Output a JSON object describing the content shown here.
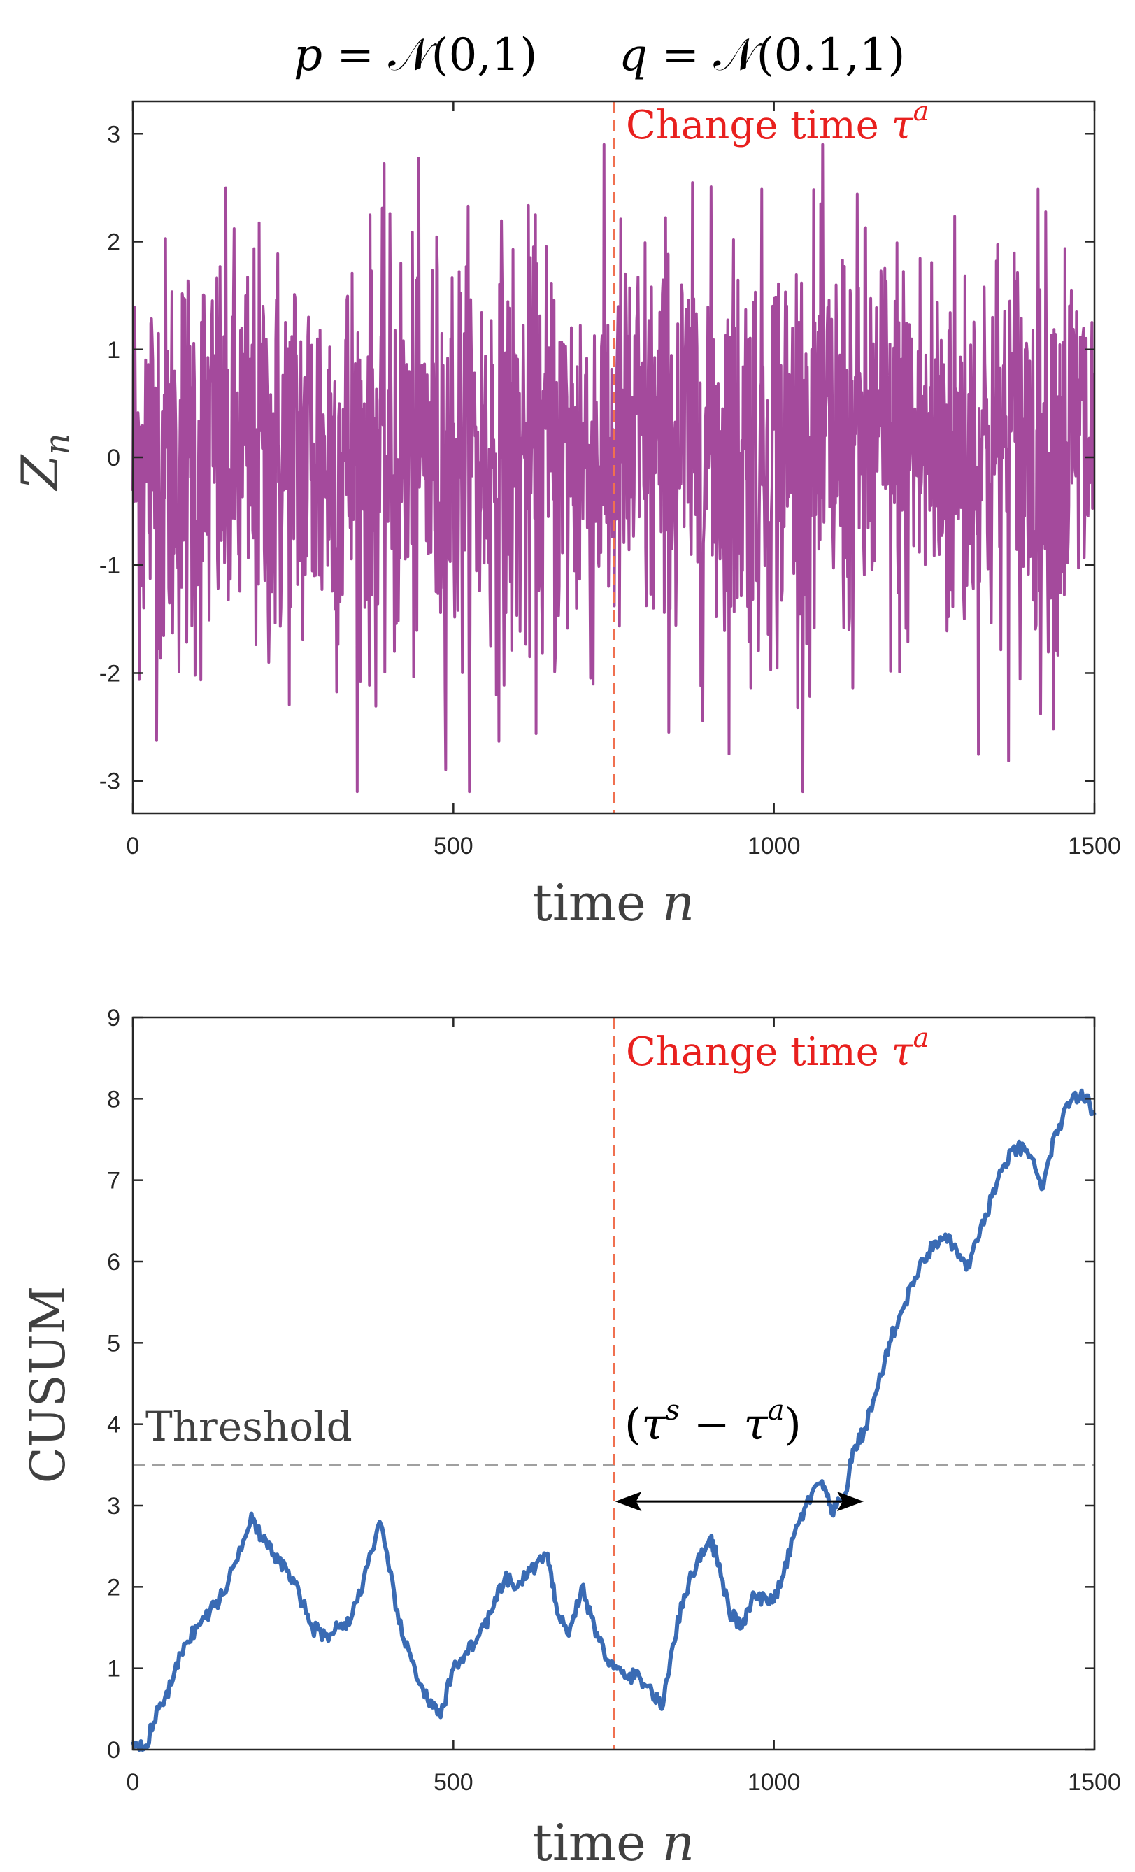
{
  "title": {
    "p_var": "p",
    "p_eq": " = ",
    "p_dist": "𝒩",
    "p_args": "(0,1)",
    "q_var": "q",
    "q_eq": " = ",
    "q_dist": "𝒩",
    "q_args": "(0.1,1)"
  },
  "colors": {
    "signal": "#a44a9c",
    "cusum": "#3a6bb4",
    "change": "#f07050",
    "change_text": "#e8201e",
    "threshold": "#a0a0a0",
    "arrow": "#000000"
  },
  "chart_data": [
    {
      "type": "line",
      "name": "observations",
      "ylabel_main": "Z",
      "ylabel_sub": "n",
      "xlabel_main": "time ",
      "xlabel_var": "n",
      "xlim": [
        0,
        1500
      ],
      "ylim": [
        -3.3,
        3.3
      ],
      "xticks": [
        0,
        500,
        1000,
        1500
      ],
      "yticks": [
        -3,
        -2,
        -1,
        0,
        1,
        2,
        3
      ],
      "series_description": "Gaussian noise, mean 0 before change, mean 0.1 after change",
      "pre_change_mean": 0,
      "post_change_mean": 0.1,
      "std": 1,
      "n_samples": 1500,
      "observed_max": 2.9,
      "observed_min": -3.1,
      "change_time": 750,
      "change_label_main": "Change time ",
      "change_label_var": "τ",
      "change_label_sup": "a"
    },
    {
      "type": "line",
      "name": "cusum",
      "ylabel": "CUSUM",
      "xlabel_main": "time ",
      "xlabel_var": "n",
      "xlim": [
        0,
        1500
      ],
      "ylim": [
        0,
        9
      ],
      "xticks": [
        0,
        500,
        1000,
        1500
      ],
      "yticks": [
        0,
        1,
        2,
        3,
        4,
        5,
        6,
        7,
        8,
        9
      ],
      "x": [
        0,
        20,
        40,
        60,
        80,
        100,
        120,
        140,
        160,
        185,
        200,
        220,
        240,
        260,
        280,
        300,
        320,
        340,
        360,
        385,
        400,
        420,
        440,
        460,
        480,
        500,
        520,
        540,
        560,
        580,
        600,
        620,
        645,
        660,
        680,
        700,
        720,
        735,
        750,
        770,
        790,
        810,
        825,
        840,
        860,
        880,
        900,
        910,
        930,
        950,
        970,
        990,
        1010,
        1030,
        1050,
        1075,
        1090,
        1110,
        1125,
        1140,
        1160,
        1180,
        1200,
        1220,
        1240,
        1260,
        1280,
        1300,
        1320,
        1340,
        1360,
        1380,
        1400,
        1420,
        1440,
        1460,
        1480,
        1500
      ],
      "y": [
        0.1,
        0.05,
        0.5,
        0.8,
        1.3,
        1.5,
        1.7,
        1.9,
        2.3,
        2.9,
        2.6,
        2.4,
        2.2,
        1.9,
        1.5,
        1.4,
        1.5,
        1.6,
        2.1,
        2.8,
        2.2,
        1.4,
        1.0,
        0.6,
        0.4,
        1.0,
        1.2,
        1.4,
        1.7,
        2.1,
        2.0,
        2.2,
        2.4,
        1.8,
        1.4,
        2.0,
        1.5,
        1.2,
        1.0,
        0.9,
        0.9,
        0.7,
        0.5,
        1.2,
        1.9,
        2.3,
        2.6,
        2.4,
        1.7,
        1.5,
        1.9,
        1.8,
        2.0,
        2.6,
        3.0,
        3.3,
        2.9,
        3.1,
        3.7,
        3.9,
        4.4,
        5.0,
        5.4,
        5.8,
        6.1,
        6.3,
        6.2,
        5.9,
        6.3,
        6.8,
        7.2,
        7.4,
        7.3,
        6.9,
        7.6,
        7.9,
        8.1,
        7.8
      ],
      "threshold": 3.5,
      "threshold_label": "Threshold",
      "change_time": 750,
      "change_label_main": "Change time ",
      "change_label_var": "τ",
      "change_label_sup": "a",
      "stop_time": 1140,
      "delay_label_open": "(",
      "delay_label_t1": "τ",
      "delay_label_s": "s",
      "delay_label_minus": " − ",
      "delay_label_t2": "τ",
      "delay_label_a": "a",
      "delay_label_close": ")"
    }
  ]
}
